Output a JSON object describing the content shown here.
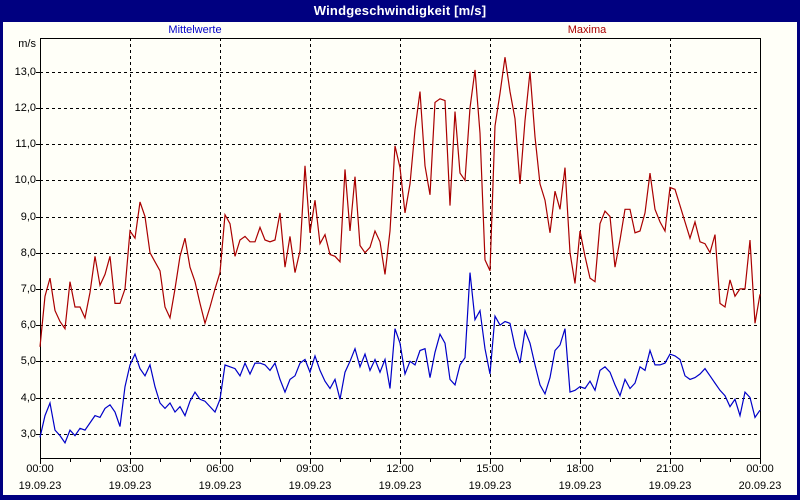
{
  "window": {
    "title": "Windgeschwindigkeit [m/s]"
  },
  "colors": {
    "titlebar": "#000080",
    "frame": "#000080",
    "title_text": "#ffffff",
    "plot_background": "#fffff8",
    "grid": "#000000",
    "mittelwerte": "#0000c8",
    "maxima": "#aa0000"
  },
  "chart_data": {
    "type": "line",
    "title": "Windgeschwindigkeit [m/s]",
    "unit_label": "m/s",
    "xlabel": "",
    "ylabel": "m/s",
    "ylim": [
      2.33,
      13.93
    ],
    "x_start_hour": 0,
    "x_end_hour": 24,
    "interval_minutes": 10,
    "grid": "dashed",
    "legend_position": "top",
    "y_ticks": [
      {
        "value": 3,
        "label": "3,0"
      },
      {
        "value": 4,
        "label": "4,0"
      },
      {
        "value": 5,
        "label": "5,0"
      },
      {
        "value": 6,
        "label": "6,0"
      },
      {
        "value": 7,
        "label": "7,0"
      },
      {
        "value": 8,
        "label": "8,0"
      },
      {
        "value": 9,
        "label": "9,0"
      },
      {
        "value": 10,
        "label": "10,0"
      },
      {
        "value": 11,
        "label": "11,0"
      },
      {
        "value": 12,
        "label": "12,0"
      },
      {
        "value": 13,
        "label": "13,0"
      }
    ],
    "x_ticks": [
      {
        "hour": 0,
        "time": "00:00",
        "date": "19.09.23"
      },
      {
        "hour": 3,
        "time": "03:00",
        "date": "19.09.23"
      },
      {
        "hour": 6,
        "time": "06:00",
        "date": "19.09.23"
      },
      {
        "hour": 9,
        "time": "09:00",
        "date": "19.09.23"
      },
      {
        "hour": 12,
        "time": "12:00",
        "date": "19.09.23"
      },
      {
        "hour": 15,
        "time": "15:00",
        "date": "19.09.23"
      },
      {
        "hour": 18,
        "time": "18:00",
        "date": "19.09.23"
      },
      {
        "hour": 21,
        "time": "21:00",
        "date": "19.09.23"
      },
      {
        "hour": 24,
        "time": "00:00",
        "date": "20.09.23"
      }
    ],
    "minor_tick_every_hours": 1,
    "major_tick_every_hours": 3,
    "series": [
      {
        "name": "Mittelwerte",
        "color": "#0000c8",
        "values": [
          2.9,
          3.5,
          3.85,
          3.1,
          2.95,
          2.75,
          3.1,
          2.95,
          3.15,
          3.1,
          3.3,
          3.5,
          3.45,
          3.7,
          3.8,
          3.6,
          3.2,
          4.3,
          4.9,
          5.2,
          4.8,
          4.6,
          4.9,
          4.3,
          3.85,
          3.7,
          3.85,
          3.6,
          3.75,
          3.5,
          3.9,
          4.15,
          3.95,
          3.9,
          3.75,
          3.6,
          3.95,
          4.9,
          4.85,
          4.8,
          4.6,
          4.95,
          4.65,
          4.95,
          4.95,
          4.9,
          4.75,
          4.95,
          4.5,
          4.15,
          4.5,
          4.6,
          4.95,
          5.05,
          4.7,
          5.15,
          4.75,
          4.45,
          4.25,
          4.5,
          3.95,
          4.7,
          5.0,
          5.35,
          4.85,
          5.2,
          4.75,
          5.05,
          4.7,
          5.05,
          4.25,
          5.9,
          5.5,
          4.65,
          5.0,
          4.9,
          5.3,
          5.35,
          4.55,
          5.25,
          5.75,
          5.5,
          4.5,
          4.35,
          4.9,
          5.1,
          7.45,
          6.15,
          6.4,
          5.35,
          4.65,
          6.25,
          6.0,
          6.1,
          6.05,
          5.4,
          4.95,
          5.85,
          5.5,
          4.9,
          4.35,
          4.1,
          4.55,
          5.3,
          5.45,
          5.9,
          4.15,
          4.2,
          4.3,
          4.25,
          4.45,
          4.2,
          4.75,
          4.85,
          4.7,
          4.35,
          4.05,
          4.5,
          4.25,
          4.4,
          4.85,
          4.75,
          5.3,
          4.9,
          4.9,
          4.95,
          5.2,
          5.15,
          5.05,
          4.6,
          4.5,
          4.55,
          4.65,
          4.8,
          4.6,
          4.4,
          4.2,
          4.05,
          3.75,
          3.95,
          3.5,
          4.15,
          4.0,
          3.45,
          3.65
        ]
      },
      {
        "name": "Maxima",
        "color": "#aa0000",
        "values": [
          5.4,
          6.8,
          7.3,
          6.4,
          6.1,
          5.9,
          7.2,
          6.5,
          6.5,
          6.2,
          6.9,
          7.9,
          7.1,
          7.4,
          7.9,
          6.6,
          6.6,
          7.0,
          8.6,
          8.4,
          9.4,
          9.0,
          8.0,
          7.75,
          7.5,
          6.5,
          6.2,
          7.0,
          7.9,
          8.4,
          7.6,
          7.2,
          6.6,
          6.05,
          6.5,
          7.0,
          7.45,
          9.05,
          8.8,
          7.9,
          8.35,
          8.45,
          8.3,
          8.3,
          8.7,
          8.35,
          8.3,
          8.35,
          9.1,
          7.6,
          8.45,
          7.45,
          8.05,
          10.4,
          8.55,
          9.45,
          8.25,
          8.5,
          7.95,
          7.9,
          7.75,
          10.3,
          8.6,
          10.1,
          8.2,
          8.0,
          8.15,
          8.6,
          8.3,
          7.4,
          8.6,
          10.95,
          10.35,
          9.1,
          9.9,
          11.4,
          12.45,
          10.4,
          9.6,
          12.15,
          12.25,
          12.2,
          9.3,
          11.9,
          10.2,
          10.0,
          12.0,
          13.05,
          11.3,
          7.8,
          7.5,
          11.5,
          12.4,
          13.4,
          12.45,
          11.7,
          9.9,
          11.65,
          13.0,
          11.2,
          9.9,
          9.45,
          8.55,
          9.7,
          9.2,
          10.35,
          8.0,
          7.15,
          8.6,
          7.9,
          7.3,
          7.2,
          8.8,
          9.15,
          9.0,
          7.6,
          8.35,
          9.2,
          9.2,
          8.55,
          8.6,
          9.1,
          10.2,
          9.2,
          8.85,
          8.6,
          9.8,
          9.75,
          9.3,
          8.85,
          8.4,
          8.85,
          8.3,
          8.25,
          8.0,
          8.5,
          6.6,
          6.5,
          7.25,
          6.8,
          7.0,
          7.0,
          8.35,
          6.05,
          6.85
        ]
      }
    ]
  }
}
